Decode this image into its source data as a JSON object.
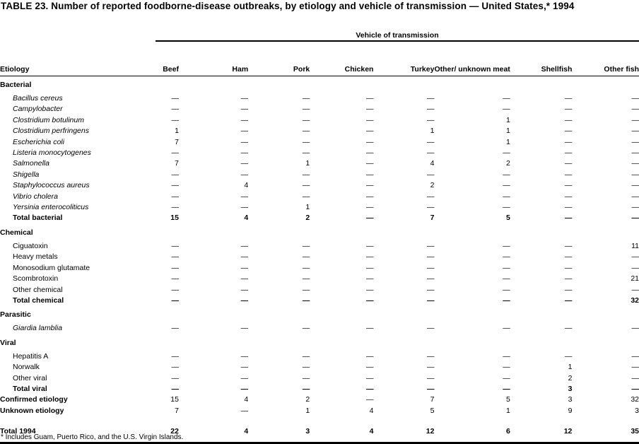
{
  "title": "TABLE 23. Number of reported foodborne-disease outbreaks, by etiology and vehicle of transmission — United States,* 1994",
  "span_header": "Vehicle of transmission",
  "columns": [
    "Etiology",
    "Beef",
    "Ham",
    "Pork",
    "Chicken",
    "Turkey",
    "Other/ unknown meat",
    "Shellfish",
    "Other fish"
  ],
  "rows": [
    {
      "type": "group",
      "label": "Bacterial",
      "cells": []
    },
    {
      "type": "item italic",
      "label": "Bacillus cereus",
      "cells": [
        "—",
        "—",
        "—",
        "—",
        "—",
        "—",
        "—",
        "—"
      ]
    },
    {
      "type": "item italic",
      "label": "Campylobacter",
      "cells": [
        "—",
        "—",
        "—",
        "—",
        "—",
        "—",
        "—",
        "—"
      ]
    },
    {
      "type": "item italic",
      "label": "Clostridium botulinum",
      "cells": [
        "—",
        "—",
        "—",
        "—",
        "—",
        "1",
        "—",
        "—"
      ]
    },
    {
      "type": "item italic",
      "label": "Clostridium perfringens",
      "cells": [
        "1",
        "—",
        "—",
        "—",
        "1",
        "1",
        "—",
        "—"
      ]
    },
    {
      "type": "item italic",
      "label": "Escherichia coli",
      "cells": [
        "7",
        "—",
        "—",
        "—",
        "—",
        "1",
        "—",
        "—"
      ]
    },
    {
      "type": "item italic",
      "label": "Listeria monocytogenes",
      "cells": [
        "—",
        "—",
        "—",
        "—",
        "—",
        "—",
        "—",
        "—"
      ]
    },
    {
      "type": "item italic",
      "label": "Salmonella",
      "cells": [
        "7",
        "—",
        "1",
        "—",
        "4",
        "2",
        "—",
        "—"
      ]
    },
    {
      "type": "item italic",
      "label": "Shigella",
      "cells": [
        "—",
        "—",
        "—",
        "—",
        "—",
        "—",
        "—",
        "—"
      ]
    },
    {
      "type": "item italic",
      "label": "Staphylococcus aureus",
      "cells": [
        "—",
        "4",
        "—",
        "—",
        "2",
        "—",
        "—",
        "—"
      ]
    },
    {
      "type": "item italic",
      "label": "Vibrio cholera",
      "cells": [
        "—",
        "—",
        "—",
        "—",
        "—",
        "—",
        "—",
        "—"
      ]
    },
    {
      "type": "item italic",
      "label": "Yersinia enterocoliticus",
      "cells": [
        "—",
        "—",
        "1",
        "—",
        "—",
        "—",
        "—",
        "—"
      ]
    },
    {
      "type": "total",
      "label": "Total bacterial",
      "cells": [
        "15",
        "4",
        "2",
        "—",
        "7",
        "5",
        "—",
        "—"
      ]
    },
    {
      "type": "group",
      "label": "Chemical",
      "cells": []
    },
    {
      "type": "item",
      "label": "Ciguatoxin",
      "cells": [
        "—",
        "—",
        "—",
        "—",
        "—",
        "—",
        "—",
        "11"
      ]
    },
    {
      "type": "item",
      "label": "Heavy metals",
      "cells": [
        "—",
        "—",
        "—",
        "—",
        "—",
        "—",
        "—",
        "—"
      ]
    },
    {
      "type": "item",
      "label": "Monosodium glutamate",
      "cells": [
        "—",
        "—",
        "—",
        "—",
        "—",
        "—",
        "—",
        "—"
      ]
    },
    {
      "type": "item",
      "label": "Scombrotoxin",
      "cells": [
        "—",
        "—",
        "—",
        "—",
        "—",
        "—",
        "—",
        "21"
      ]
    },
    {
      "type": "item",
      "label": "Other chemical",
      "cells": [
        "—",
        "—",
        "—",
        "—",
        "—",
        "—",
        "—",
        "—"
      ]
    },
    {
      "type": "total",
      "label": "Total chemical",
      "cells": [
        "—",
        "—",
        "—",
        "—",
        "—",
        "—",
        "—",
        "32"
      ]
    },
    {
      "type": "group",
      "label": "Parasitic",
      "cells": []
    },
    {
      "type": "item italic",
      "label": "Giardia lamblia",
      "cells": [
        "—",
        "—",
        "—",
        "—",
        "—",
        "—",
        "—",
        "—"
      ]
    },
    {
      "type": "group",
      "label": "Viral",
      "cells": []
    },
    {
      "type": "item",
      "label": "Hepatitis A",
      "cells": [
        "—",
        "—",
        "—",
        "—",
        "—",
        "—",
        "—",
        "—"
      ]
    },
    {
      "type": "item",
      "label": "Norwalk",
      "cells": [
        "—",
        "—",
        "—",
        "—",
        "—",
        "—",
        "1",
        "—"
      ]
    },
    {
      "type": "item",
      "label": "Other viral",
      "cells": [
        "—",
        "—",
        "—",
        "—",
        "—",
        "—",
        "2",
        "—"
      ]
    },
    {
      "type": "total",
      "label": "Total viral",
      "cells": [
        "—",
        "—",
        "—",
        "—",
        "—",
        "—",
        "3",
        "—"
      ]
    },
    {
      "type": "top",
      "label": "Confirmed etiology",
      "cells": [
        "15",
        "4",
        "2",
        "—",
        "7",
        "5",
        "3",
        "32"
      ]
    },
    {
      "type": "top",
      "label": "Unknown etiology",
      "cells": [
        "7",
        "—",
        "1",
        "4",
        "5",
        "1",
        "9",
        "3"
      ]
    },
    {
      "type": "grand",
      "label": "Total 1994",
      "cells": [
        "22",
        "4",
        "3",
        "4",
        "12",
        "6",
        "12",
        "35"
      ]
    }
  ],
  "footnote": "* Includes Guam, Puerto Rico, and the U.S. Virgin Islands."
}
